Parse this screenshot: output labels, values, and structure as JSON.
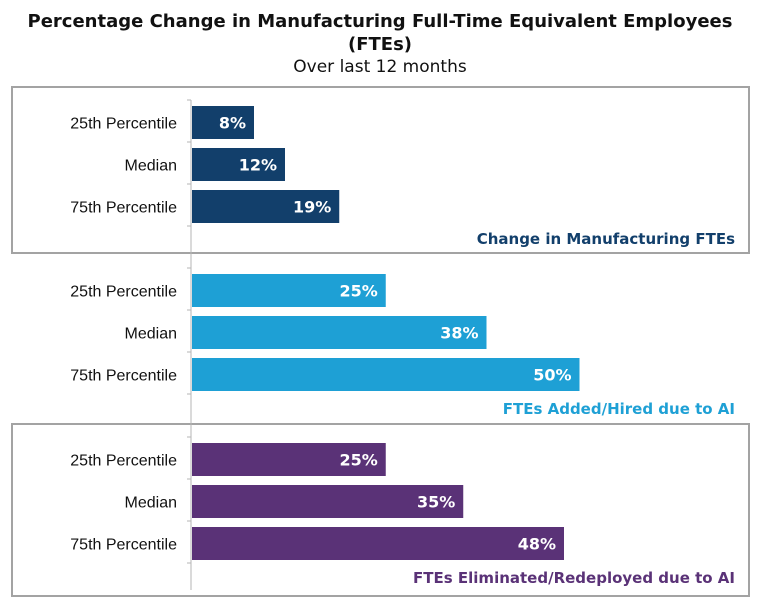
{
  "title_line1": "Percentage Change in Manufacturing Full-Time Equivalent Employees",
  "title_line2": "(FTEs)",
  "subtitle": "Over last 12 months",
  "chart_data": [
    {
      "type": "bar",
      "orientation": "horizontal",
      "title": "Change in Manufacturing FTEs",
      "color": "#123f6b",
      "categories": [
        "25th Percentile",
        "Median",
        "75th Percentile"
      ],
      "values": [
        8,
        12,
        19
      ],
      "value_labels": [
        "8%",
        "12%",
        "19%"
      ],
      "xlim": [
        0,
        70
      ]
    },
    {
      "type": "bar",
      "orientation": "horizontal",
      "title": "FTEs Added/Hired due to AI",
      "color": "#1ea0d5",
      "categories": [
        "25th Percentile",
        "Median",
        "75th Percentile"
      ],
      "values": [
        25,
        38,
        50
      ],
      "value_labels": [
        "25%",
        "38%",
        "50%"
      ],
      "xlim": [
        0,
        70
      ]
    },
    {
      "type": "bar",
      "orientation": "horizontal",
      "title": "FTEs Eliminated/Redeployed due to AI",
      "color": "#5a3277",
      "categories": [
        "25th Percentile",
        "Median",
        "75th Percentile"
      ],
      "values": [
        25,
        35,
        48
      ],
      "value_labels": [
        "25%",
        "35%",
        "48%"
      ],
      "xlim": [
        0,
        70
      ]
    }
  ]
}
